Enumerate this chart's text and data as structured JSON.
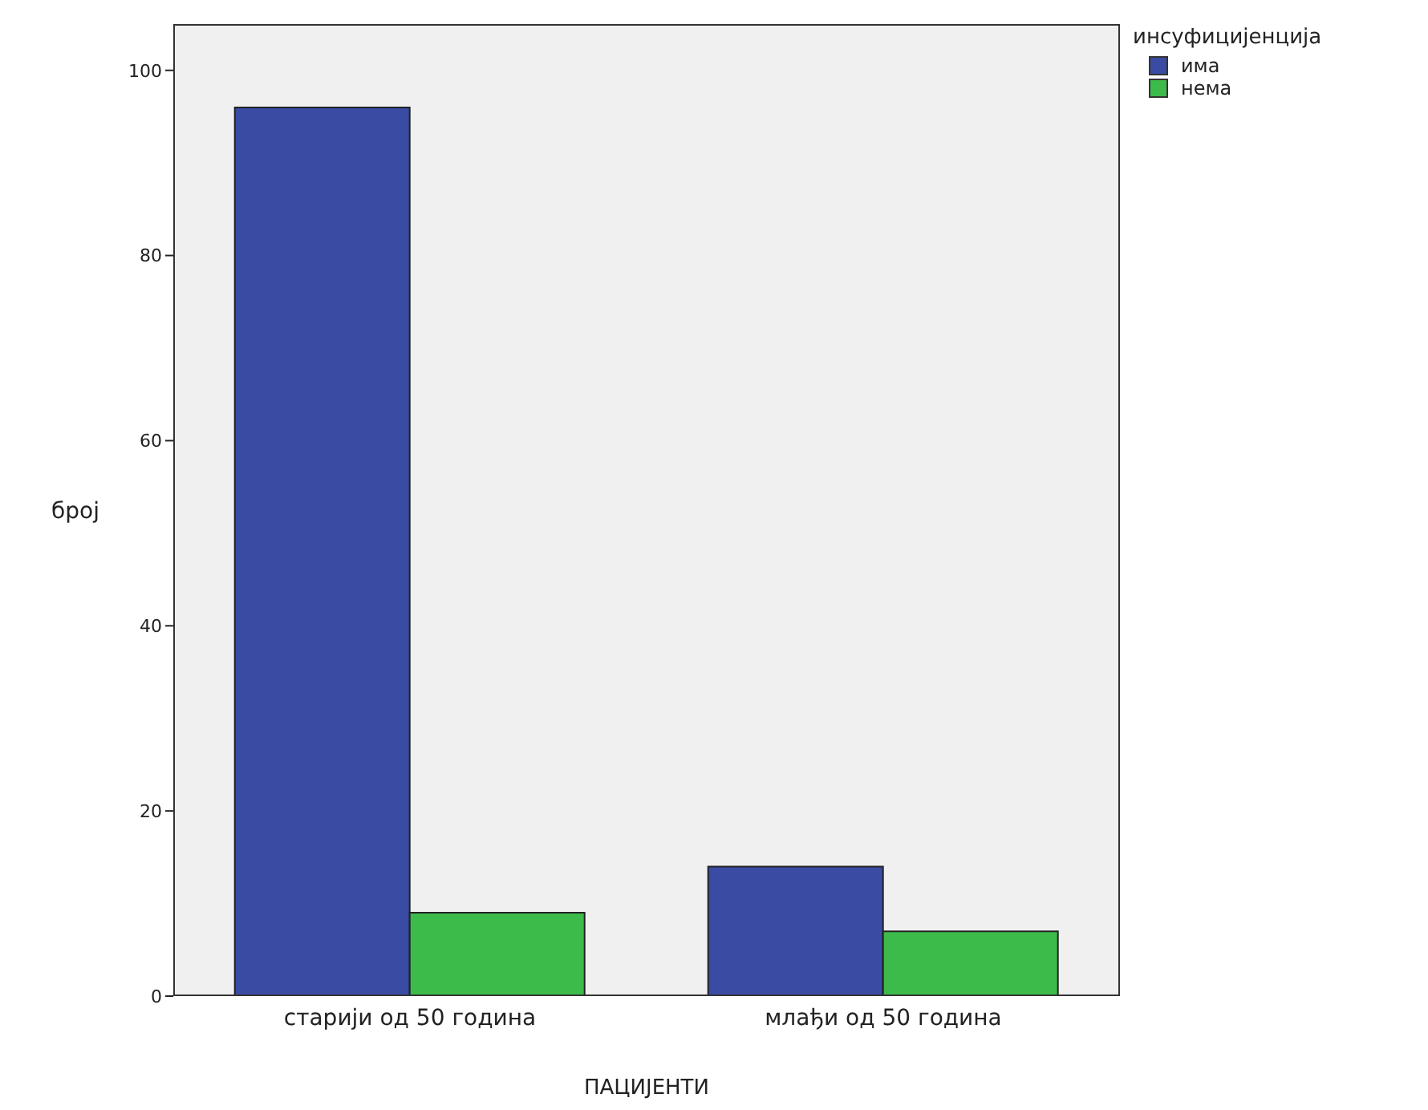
{
  "chart_data": {
    "type": "bar",
    "xlabel": "ПАЦИЈЕНТИ",
    "ylabel": "број",
    "legend_title": "инсуфицијенција",
    "categories": [
      "старији од 50 година",
      "млађи од 50 година"
    ],
    "series": [
      {
        "name": "има",
        "color": "#3a4ba4",
        "values": [
          96,
          14
        ]
      },
      {
        "name": "нема",
        "color": "#3dbb4a",
        "values": [
          9,
          7
        ]
      }
    ],
    "ylim": [
      0,
      105
    ],
    "yticks": [
      0,
      20,
      40,
      60,
      80,
      100
    ],
    "grid": false,
    "legend": "top right"
  }
}
